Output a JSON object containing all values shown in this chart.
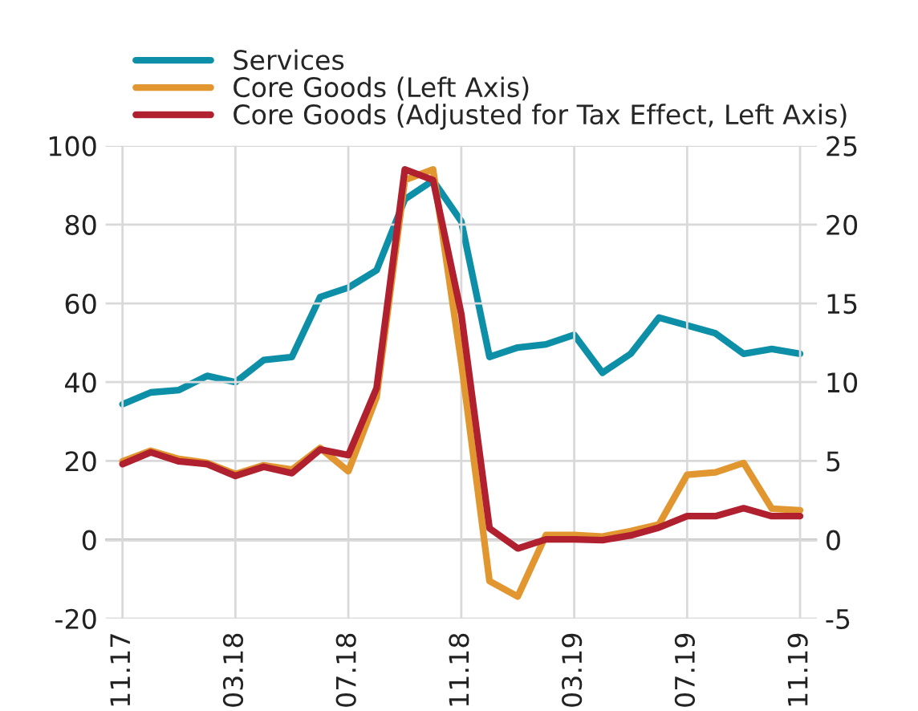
{
  "chart_data": {
    "type": "line",
    "categories": [
      "11.17",
      null,
      null,
      null,
      "03.18",
      null,
      null,
      null,
      "07.18",
      null,
      null,
      null,
      "11.18",
      null,
      null,
      null,
      "03.19",
      null,
      null,
      null,
      "07.19",
      null,
      null,
      null,
      "11.19"
    ],
    "series": [
      {
        "name": "Services",
        "color": "#0e8fa8",
        "axis": "y2",
        "values": [
          8.6,
          9.35,
          9.5,
          10.4,
          10.0,
          11.4,
          11.6,
          15.4,
          16.0,
          17.1,
          21.6,
          22.8,
          20.2,
          11.6,
          12.2,
          12.4,
          13.0,
          10.6,
          11.8,
          14.1,
          13.6,
          13.1,
          11.8,
          12.1,
          11.8
        ]
      },
      {
        "name": "Core Goods (Left Axis)",
        "color": "#e2962f",
        "values": [
          19.9,
          22.6,
          20.5,
          19.5,
          16.7,
          18.9,
          17.8,
          23.3,
          17.4,
          36.2,
          91.3,
          94,
          45,
          -10.5,
          -14.4,
          1.2,
          1.2,
          0.8,
          2.2,
          3.9,
          16.5,
          17.1,
          19.5,
          7.9,
          7.5
        ]
      },
      {
        "name": "Core Goods (Adjusted for Tax Effect, Left Axis)",
        "color": "#b0202f",
        "values": [
          19.2,
          22.2,
          19.9,
          19.2,
          16.2,
          18.5,
          16.9,
          22.9,
          21.5,
          38.5,
          94,
          91.3,
          57.3,
          2.9,
          -2.2,
          0.1,
          0.1,
          -0.1,
          1.1,
          3.1,
          6.0,
          6.0,
          8.0,
          6.0,
          6.0
        ]
      }
    ],
    "ylim": [
      -20,
      100
    ],
    "yticks": [
      -20,
      0,
      20,
      40,
      60,
      80,
      100
    ],
    "y2lim": [
      -5,
      25
    ],
    "y2ticks": [
      -5,
      0,
      5,
      10,
      15,
      20,
      25
    ],
    "ref_lines": [
      {
        "axis": "y",
        "value": 0,
        "color": "#808080"
      }
    ],
    "grid": true,
    "legend": "top",
    "line_style": "solid",
    "marker": "none"
  }
}
